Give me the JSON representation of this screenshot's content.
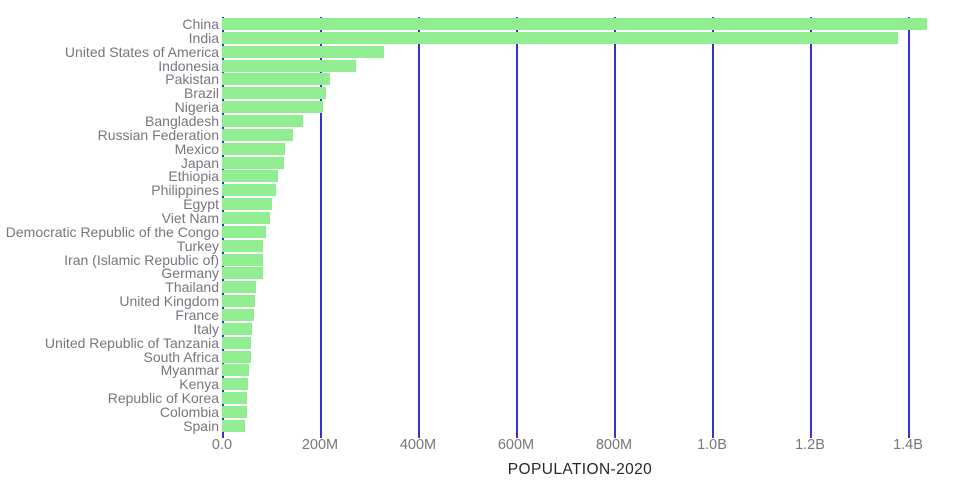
{
  "chart_data": {
    "type": "bar",
    "orientation": "horizontal",
    "title": "",
    "xlabel": "POPULATION-2020",
    "ylabel": "",
    "legend": "none",
    "grid": "vertical-gridlines",
    "xlim_millions": [
      0,
      1461
    ],
    "x_tick_labels": [
      "0.0",
      "200M",
      "400M",
      "600M",
      "800M",
      "1.0B",
      "1.2B",
      "1.4B"
    ],
    "x_tick_values_millions": [
      0,
      200,
      400,
      600,
      800,
      1000,
      1200,
      1400
    ],
    "categories": [
      "China",
      "India",
      "United States of America",
      "Indonesia",
      "Pakistan",
      "Brazil",
      "Nigeria",
      "Bangladesh",
      "Russian Federation",
      "Mexico",
      "Japan",
      "Ethiopia",
      "Philippines",
      "Egypt",
      "Viet Nam",
      "Democratic Republic of the Congo",
      "Turkey",
      "Iran (Islamic Republic of)",
      "Germany",
      "Thailand",
      "United Kingdom",
      "France",
      "Italy",
      "United Republic of Tanzania",
      "South Africa",
      "Myanmar",
      "Kenya",
      "Republic of Korea",
      "Colombia",
      "Spain"
    ],
    "values_millions": [
      1439.3,
      1380.0,
      331.0,
      273.5,
      220.9,
      212.6,
      206.1,
      164.7,
      145.9,
      128.9,
      126.5,
      115.0,
      109.6,
      102.3,
      97.3,
      89.6,
      84.3,
      84.0,
      83.8,
      69.8,
      67.9,
      65.3,
      60.5,
      59.7,
      59.3,
      54.4,
      53.8,
      51.3,
      50.9,
      46.8
    ],
    "colors": {
      "bar": "#90ee90",
      "gridline": "#3434d0",
      "axis_text": "#76767e",
      "title_text": "#26262b",
      "background": "#ffffff"
    }
  }
}
